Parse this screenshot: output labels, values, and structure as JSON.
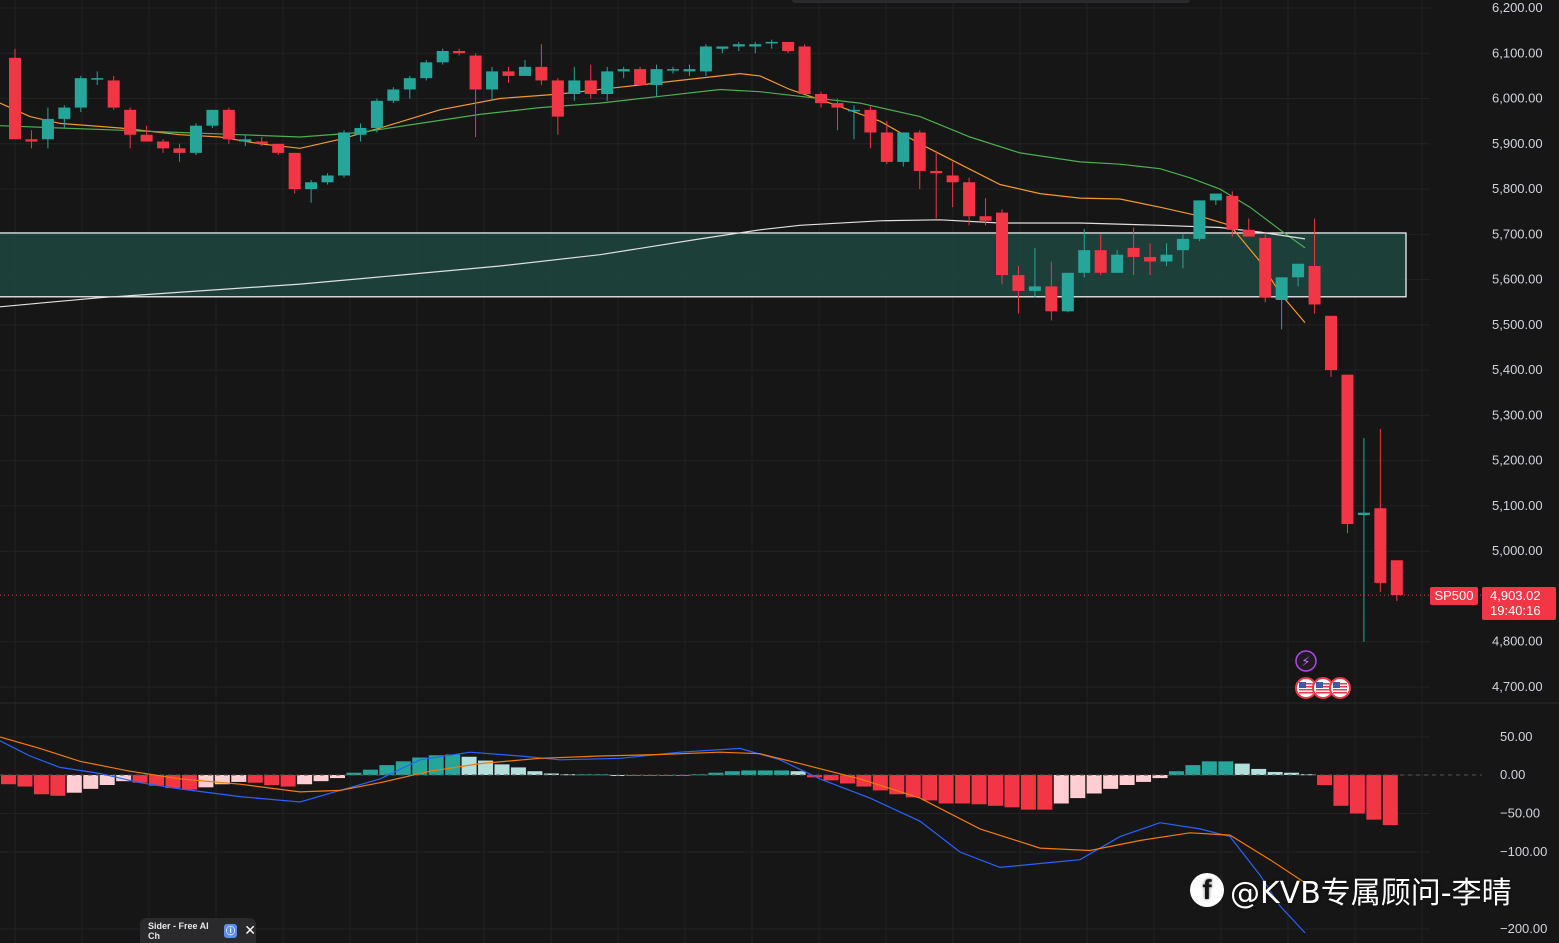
{
  "symbol_badge": "SP500",
  "last_price_label": "4,903.02",
  "countdown": "19:40:16",
  "watermark": "@KVB专属顾问-李晴",
  "facebook_glyph": "f",
  "sider_label": "Sider - Free AI Ch",
  "event_icons": [
    "lightning-icon",
    "us-flag-icon",
    "us-flag-icon",
    "us-flag-icon"
  ],
  "colors": {
    "up": "#26a69a",
    "down": "#f23645",
    "up_light": "#b2dfdb",
    "down_light": "#ffcdd2",
    "ma_fast": "#f59a23",
    "ma_slow": "#4caf50",
    "ma_long": "#e0e0e0",
    "macd": "#2962ff",
    "signal": "#f57c00",
    "zone_fill": "#1f4a43"
  },
  "chart_data": [
    {
      "type": "candlestick",
      "title": "",
      "symbol": "SP500",
      "y_ticks": [
        "6,200.00",
        "6,100.00",
        "6,000.00",
        "5,900.00",
        "5,800.00",
        "5,700.00",
        "5,600.00",
        "5,500.00",
        "5,400.00",
        "5,300.00",
        "5,200.00",
        "5,100.00",
        "5,000.00",
        "4,800.00",
        "4,700.00"
      ],
      "y_tick_values": [
        6200,
        6100,
        6000,
        5900,
        5800,
        5700,
        5600,
        5500,
        5400,
        5300,
        5200,
        5100,
        5000,
        4800,
        4700
      ],
      "ylim": [
        4660,
        6225
      ],
      "last_price": 4903.02,
      "zone": [
        5562,
        5703
      ],
      "ohlc": [
        [
          6090,
          6110,
          5920,
          5910
        ],
        [
          5910,
          5930,
          5890,
          5905
        ],
        [
          5910,
          5980,
          5890,
          5955
        ],
        [
          5955,
          5985,
          5935,
          5980
        ],
        [
          5980,
          6050,
          5970,
          6045
        ],
        [
          6045,
          6060,
          6030,
          6045
        ],
        [
          6040,
          6050,
          5975,
          5980
        ],
        [
          5975,
          5980,
          5890,
          5920
        ],
        [
          5920,
          5940,
          5905,
          5905
        ],
        [
          5905,
          5910,
          5880,
          5890
        ],
        [
          5890,
          5900,
          5860,
          5880
        ],
        [
          5880,
          5945,
          5875,
          5940
        ],
        [
          5940,
          5975,
          5935,
          5975
        ],
        [
          5975,
          5980,
          5900,
          5910
        ],
        [
          5905,
          5920,
          5895,
          5910
        ],
        [
          5905,
          5915,
          5895,
          5900
        ],
        [
          5900,
          5900,
          5875,
          5880
        ],
        [
          5880,
          5880,
          5790,
          5800
        ],
        [
          5800,
          5820,
          5770,
          5815
        ],
        [
          5815,
          5835,
          5810,
          5830
        ],
        [
          5830,
          5930,
          5825,
          5925
        ],
        [
          5920,
          5945,
          5905,
          5935
        ],
        [
          5935,
          6000,
          5925,
          5995
        ],
        [
          5995,
          6025,
          5990,
          6020
        ],
        [
          6020,
          6050,
          6000,
          6045
        ],
        [
          6045,
          6085,
          6040,
          6080
        ],
        [
          6080,
          6110,
          6075,
          6105
        ],
        [
          6105,
          6110,
          6095,
          6100
        ],
        [
          6095,
          6100,
          5915,
          6020
        ],
        [
          6020,
          6070,
          5995,
          6060
        ],
        [
          6060,
          6070,
          6035,
          6050
        ],
        [
          6050,
          6085,
          6050,
          6070
        ],
        [
          6070,
          6120,
          6030,
          6040
        ],
        [
          6040,
          6045,
          5920,
          5960
        ],
        [
          6010,
          6070,
          5995,
          6040
        ],
        [
          6040,
          6075,
          6000,
          6010
        ],
        [
          6010,
          6070,
          5995,
          6060
        ],
        [
          6060,
          6070,
          6045,
          6065
        ],
        [
          6065,
          6070,
          6030,
          6030
        ],
        [
          6030,
          6075,
          6005,
          6065
        ],
        [
          6065,
          6070,
          6055,
          6065
        ],
        [
          6060,
          6075,
          6050,
          6065
        ],
        [
          6060,
          6120,
          6050,
          6115
        ],
        [
          6110,
          6115,
          6100,
          6115
        ],
        [
          6115,
          6125,
          6105,
          6120
        ],
        [
          6115,
          6125,
          6100,
          6120
        ],
        [
          6125,
          6130,
          6110,
          6125
        ],
        [
          6125,
          6125,
          6100,
          6105
        ],
        [
          6115,
          6120,
          6010,
          6010
        ],
        [
          6010,
          6015,
          5980,
          5990
        ],
        [
          5990,
          6000,
          5930,
          5980
        ],
        [
          5975,
          5985,
          5910,
          5975
        ],
        [
          5975,
          5985,
          5890,
          5925
        ],
        [
          5925,
          5950,
          5855,
          5860
        ],
        [
          5860,
          5925,
          5850,
          5925
        ],
        [
          5925,
          5930,
          5800,
          5840
        ],
        [
          5840,
          5885,
          5735,
          5835
        ],
        [
          5830,
          5860,
          5760,
          5815
        ],
        [
          5815,
          5825,
          5720,
          5740
        ],
        [
          5740,
          5780,
          5720,
          5730
        ],
        [
          5748,
          5755,
          5590,
          5610
        ],
        [
          5610,
          5630,
          5525,
          5575
        ],
        [
          5575,
          5670,
          5560,
          5585
        ],
        [
          5585,
          5640,
          5510,
          5530
        ],
        [
          5530,
          5615,
          5528,
          5615
        ],
        [
          5615,
          5712,
          5605,
          5665
        ],
        [
          5665,
          5700,
          5610,
          5615
        ],
        [
          5615,
          5665,
          5615,
          5655
        ],
        [
          5670,
          5715,
          5610,
          5650
        ],
        [
          5650,
          5680,
          5610,
          5640
        ],
        [
          5640,
          5680,
          5630,
          5655
        ],
        [
          5665,
          5700,
          5625,
          5690
        ],
        [
          5690,
          5775,
          5685,
          5775
        ],
        [
          5775,
          5790,
          5765,
          5790
        ],
        [
          5785,
          5795,
          5695,
          5710
        ],
        [
          5710,
          5735,
          5695,
          5695
        ],
        [
          5692,
          5700,
          5550,
          5560
        ],
        [
          5555,
          5605,
          5490,
          5605
        ],
        [
          5605,
          5635,
          5585,
          5635
        ],
        [
          5630,
          5735,
          5525,
          5545
        ],
        [
          5520,
          5520,
          5385,
          5400
        ],
        [
          5390,
          5390,
          5040,
          5060
        ],
        [
          5080,
          5250,
          4800,
          5085
        ],
        [
          5095,
          5270,
          4910,
          4930
        ],
        [
          4980,
          4980,
          4890,
          4903
        ]
      ],
      "series": [
        {
          "name": "",
          "color_key": "ma_fast",
          "values": [
            [
              0,
              5990
            ],
            [
              30,
              5960
            ],
            [
              60,
              5945
            ],
            [
              120,
              5935
            ],
            [
              180,
              5920
            ],
            [
              220,
              5915
            ],
            [
              260,
              5900
            ],
            [
              300,
              5890
            ],
            [
              340,
              5910
            ],
            [
              380,
              5935
            ],
            [
              440,
              5975
            ],
            [
              500,
              6000
            ],
            [
              560,
              6010
            ],
            [
              620,
              6025
            ],
            [
              680,
              6040
            ],
            [
              740,
              6055
            ],
            [
              760,
              6050
            ],
            [
              790,
              6020
            ],
            [
              830,
              5990
            ],
            [
              880,
              5950
            ],
            [
              920,
              5900
            ],
            [
              960,
              5855
            ],
            [
              1000,
              5810
            ],
            [
              1040,
              5790
            ],
            [
              1080,
              5780
            ],
            [
              1120,
              5778
            ],
            [
              1160,
              5760
            ],
            [
              1200,
              5740
            ],
            [
              1230,
              5720
            ],
            [
              1260,
              5640
            ],
            [
              1280,
              5570
            ],
            [
              1305,
              5505
            ]
          ]
        },
        {
          "name": "",
          "color_key": "ma_slow",
          "values": [
            [
              0,
              5940
            ],
            [
              60,
              5935
            ],
            [
              120,
              5930
            ],
            [
              180,
              5925
            ],
            [
              240,
              5920
            ],
            [
              300,
              5915
            ],
            [
              360,
              5925
            ],
            [
              420,
              5945
            ],
            [
              480,
              5965
            ],
            [
              540,
              5980
            ],
            [
              600,
              5990
            ],
            [
              660,
              6005
            ],
            [
              720,
              6020
            ],
            [
              760,
              6015
            ],
            [
              800,
              6005
            ],
            [
              860,
              5990
            ],
            [
              920,
              5960
            ],
            [
              970,
              5915
            ],
            [
              1020,
              5880
            ],
            [
              1080,
              5860
            ],
            [
              1120,
              5855
            ],
            [
              1160,
              5845
            ],
            [
              1190,
              5825
            ],
            [
              1220,
              5800
            ],
            [
              1250,
              5760
            ],
            [
              1280,
              5710
            ],
            [
              1305,
              5670
            ]
          ]
        },
        {
          "name": "",
          "color_key": "ma_long",
          "values": [
            [
              0,
              5540
            ],
            [
              50,
              5550
            ],
            [
              100,
              5560
            ],
            [
              200,
              5575
            ],
            [
              300,
              5590
            ],
            [
              400,
              5610
            ],
            [
              500,
              5630
            ],
            [
              600,
              5655
            ],
            [
              700,
              5690
            ],
            [
              760,
              5710
            ],
            [
              800,
              5720
            ],
            [
              880,
              5730
            ],
            [
              940,
              5732
            ],
            [
              1000,
              5725
            ],
            [
              1080,
              5725
            ],
            [
              1160,
              5720
            ],
            [
              1220,
              5715
            ],
            [
              1260,
              5705
            ],
            [
              1305,
              5690
            ]
          ]
        }
      ]
    },
    {
      "type": "histogram",
      "title": "",
      "y_ticks": [
        "50.00",
        "0.00",
        "−50.00",
        "−100.00",
        "−200.00"
      ],
      "y_tick_values": [
        50,
        0,
        -50,
        -100,
        -200
      ],
      "ylim": [
        -210,
        60
      ],
      "histogram": [
        -12,
        -15,
        -25,
        -27,
        -23,
        -18,
        -13,
        -8,
        -10,
        -14,
        -17,
        -19,
        -16,
        -12,
        -9,
        -10,
        -13,
        -15,
        -12,
        -8,
        -4,
        3,
        7,
        13,
        18,
        23,
        26,
        27,
        24,
        19,
        14,
        10,
        5,
        2,
        1,
        1,
        1,
        0,
        -1,
        -1,
        -1,
        0,
        1,
        3,
        5,
        6,
        6,
        6,
        5,
        -3,
        -7,
        -11,
        -15,
        -20,
        -25,
        -29,
        -33,
        -37,
        -37,
        -38,
        -40,
        -42,
        -45,
        -45,
        -37,
        -30,
        -24,
        -18,
        -13,
        -9,
        -4,
        5,
        13,
        18,
        18,
        15,
        8,
        4,
        3,
        1,
        -13,
        -40,
        -50,
        -58,
        -65
      ],
      "series": [
        {
          "name": "",
          "color_key": "macd",
          "values": [
            [
              0,
              45
            ],
            [
              30,
              25
            ],
            [
              60,
              10
            ],
            [
              100,
              2
            ],
            [
              140,
              -10
            ],
            [
              180,
              -18
            ],
            [
              240,
              -28
            ],
            [
              300,
              -35
            ],
            [
              340,
              -20
            ],
            [
              380,
              -5
            ],
            [
              420,
              20
            ],
            [
              470,
              30
            ],
            [
              520,
              25
            ],
            [
              560,
              20
            ],
            [
              620,
              22
            ],
            [
              680,
              30
            ],
            [
              740,
              35
            ],
            [
              780,
              20
            ],
            [
              820,
              -5
            ],
            [
              870,
              -30
            ],
            [
              920,
              -60
            ],
            [
              960,
              -100
            ],
            [
              1000,
              -120
            ],
            [
              1040,
              -115
            ],
            [
              1080,
              -110
            ],
            [
              1120,
              -80
            ],
            [
              1160,
              -62
            ],
            [
              1200,
              -70
            ],
            [
              1230,
              -80
            ],
            [
              1260,
              -130
            ],
            [
              1280,
              -170
            ],
            [
              1305,
              -205
            ]
          ]
        },
        {
          "name": "",
          "color_key": "signal",
          "values": [
            [
              0,
              50
            ],
            [
              40,
              35
            ],
            [
              80,
              18
            ],
            [
              130,
              5
            ],
            [
              180,
              -5
            ],
            [
              240,
              -12
            ],
            [
              300,
              -22
            ],
            [
              340,
              -20
            ],
            [
              380,
              -10
            ],
            [
              430,
              5
            ],
            [
              480,
              15
            ],
            [
              540,
              22
            ],
            [
              600,
              25
            ],
            [
              660,
              27
            ],
            [
              720,
              30
            ],
            [
              760,
              28
            ],
            [
              800,
              15
            ],
            [
              860,
              -5
            ],
            [
              920,
              -30
            ],
            [
              980,
              -70
            ],
            [
              1040,
              -95
            ],
            [
              1090,
              -98
            ],
            [
              1140,
              -85
            ],
            [
              1190,
              -75
            ],
            [
              1230,
              -78
            ],
            [
              1270,
              -110
            ],
            [
              1305,
              -140
            ]
          ]
        }
      ]
    }
  ]
}
